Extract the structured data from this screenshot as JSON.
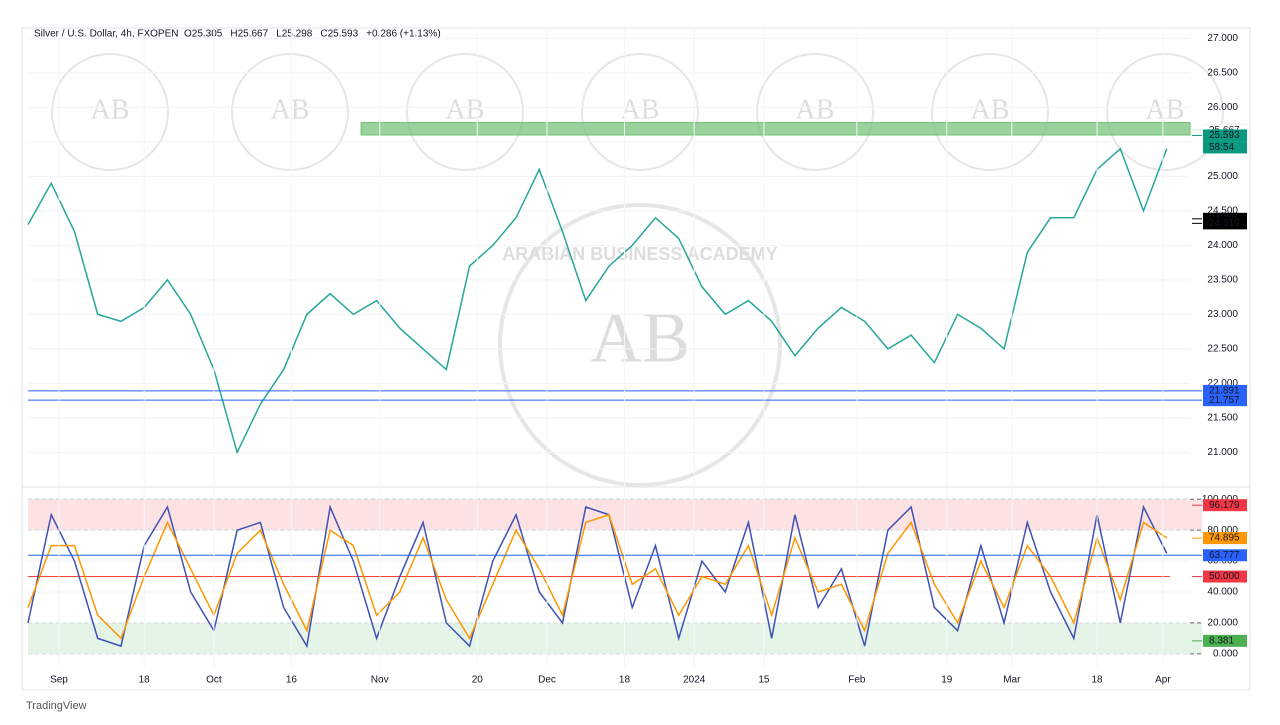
{
  "chart_data": [
    {
      "type": "line",
      "title": "Silver / U.S. Dollar, 4h, FXOPEN",
      "ohlc": [
        "O25.305",
        "H25.667",
        "L25.298",
        "C25.593",
        "+0.286 (+1.13%)"
      ],
      "x": [
        0,
        3,
        6,
        9,
        12,
        15,
        18,
        21,
        24,
        27,
        30,
        33,
        36,
        39,
        42,
        45,
        48,
        51,
        54,
        57,
        60,
        63,
        66,
        69,
        72,
        75,
        78,
        81,
        84,
        87,
        90,
        93,
        96,
        99,
        102,
        105,
        108,
        111,
        114,
        117,
        120,
        123,
        126,
        129,
        132,
        135,
        138,
        141,
        144,
        147
      ],
      "series": [
        {
          "name": "Close",
          "color": "#26a69a",
          "values": [
            24.3,
            24.9,
            24.2,
            23.0,
            22.9,
            23.1,
            23.5,
            23.0,
            22.2,
            21.0,
            21.7,
            22.2,
            23.0,
            23.3,
            23.0,
            23.2,
            22.8,
            22.5,
            22.2,
            23.7,
            24.0,
            24.4,
            25.1,
            24.2,
            23.2,
            23.7,
            24.0,
            24.4,
            24.1,
            23.4,
            23.0,
            23.2,
            22.9,
            22.4,
            22.8,
            23.1,
            22.9,
            22.5,
            22.7,
            22.3,
            23.0,
            22.8,
            22.5,
            23.9,
            24.4,
            24.4,
            25.1,
            25.4,
            24.5,
            25.4
          ]
        }
      ],
      "xlim": [
        0,
        150
      ],
      "xticks": [
        {
          "value": 4,
          "label": "Sep"
        },
        {
          "value": 15,
          "label": "18"
        },
        {
          "value": 24,
          "label": "Oct"
        },
        {
          "value": 34,
          "label": "16"
        },
        {
          "value": 45.4,
          "label": "Nov"
        },
        {
          "value": 58,
          "label": "20"
        },
        {
          "value": 67,
          "label": "Dec"
        },
        {
          "value": 77,
          "label": "18"
        },
        {
          "value": 86,
          "label": "2024"
        },
        {
          "value": 95,
          "label": "15"
        },
        {
          "value": 107,
          "label": "Feb"
        },
        {
          "value": 118.6,
          "label": "19"
        },
        {
          "value": 127,
          "label": "Mar"
        },
        {
          "value": 138,
          "label": "18"
        },
        {
          "value": 146.5,
          "label": "Apr"
        }
      ],
      "ylim": [
        20.6,
        27.15
      ],
      "yticks": [
        {
          "value": 21,
          "label": "21.000"
        },
        {
          "value": 21.5,
          "label": "21.500"
        },
        {
          "value": 22,
          "label": "22.000"
        },
        {
          "value": 22.5,
          "label": "22.500"
        },
        {
          "value": 23,
          "label": "23.000"
        },
        {
          "value": 23.5,
          "label": "23.500"
        },
        {
          "value": 24,
          "label": "24.000"
        },
        {
          "value": 24.5,
          "label": "24.500"
        },
        {
          "value": 25,
          "label": "25.000"
        },
        {
          "value": 25.5,
          "label": "25.500"
        },
        {
          "value": 26,
          "label": "26.000"
        },
        {
          "value": 26.5,
          "label": "26.500"
        },
        {
          "value": 27,
          "label": "27.000"
        }
      ],
      "zone": {
        "ylim": [
          25.6,
          25.78
        ],
        "xlim": [
          43,
          150
        ],
        "color": "#81c784"
      },
      "price_labels": [
        {
          "value": 25.667,
          "label": "25.667",
          "color": "#4caf50"
        },
        {
          "value": 25.667,
          "label": "25.667",
          "color": "#ffffff"
        },
        {
          "value": 25.593,
          "label": "25.593",
          "color": "#089981"
        },
        {
          "value": 24.385,
          "label": "24.385",
          "color": "#000000"
        },
        {
          "value": 24.319,
          "label": "24.319",
          "color": "#000000"
        },
        {
          "value": 21.891,
          "label": "21.891",
          "color": "#2962ff"
        },
        {
          "value": 21.757,
          "label": "21.757",
          "color": "#2962ff"
        }
      ],
      "countdown": "58:54",
      "watermark": {
        "text": "ARABIAN BUSINESS ACADEMY",
        "logo": "AB"
      }
    },
    {
      "type": "line",
      "x": [
        0,
        3,
        6,
        9,
        12,
        15,
        18,
        21,
        24,
        27,
        30,
        33,
        36,
        39,
        42,
        45,
        48,
        51,
        54,
        57,
        60,
        63,
        66,
        69,
        72,
        75,
        78,
        81,
        84,
        87,
        90,
        93,
        96,
        99,
        102,
        105,
        108,
        111,
        114,
        117,
        120,
        123,
        126,
        129,
        132,
        135,
        138,
        141,
        144,
        147
      ],
      "series": [
        {
          "name": "%K",
          "color": "#3f51b5",
          "values": [
            20,
            90,
            60,
            10,
            5,
            70,
            95,
            40,
            15,
            80,
            85,
            30,
            5,
            95,
            60,
            10,
            50,
            85,
            20,
            5,
            60,
            90,
            40,
            20,
            95,
            90,
            30,
            70,
            10,
            60,
            40,
            85,
            10,
            90,
            30,
            55,
            5,
            80,
            95,
            30,
            15,
            70,
            20,
            85,
            40,
            10,
            90,
            20,
            95,
            65
          ]
        },
        {
          "name": "%D",
          "color": "#ff9800",
          "values": [
            30,
            70,
            70,
            25,
            10,
            50,
            85,
            55,
            25,
            65,
            80,
            45,
            15,
            80,
            70,
            25,
            40,
            75,
            35,
            10,
            45,
            80,
            55,
            25,
            85,
            90,
            45,
            55,
            25,
            50,
            45,
            70,
            25,
            75,
            40,
            45,
            15,
            65,
            85,
            45,
            20,
            60,
            30,
            70,
            50,
            20,
            75,
            35,
            85,
            75
          ]
        }
      ],
      "ylim": [
        -4,
        106
      ],
      "yticks": [
        {
          "value": 0,
          "label": "0.000"
        },
        {
          "value": 20,
          "label": "20.000"
        },
        {
          "value": 40,
          "label": "40.000"
        },
        {
          "value": 60,
          "label": "60.000"
        },
        {
          "value": 80,
          "label": "80.000"
        },
        {
          "value": 100,
          "label": "100.000"
        }
      ],
      "bands": [
        {
          "range": [
            80,
            100
          ],
          "color": "#fbd5d5"
        },
        {
          "range": [
            0,
            20
          ],
          "color": "#d8f0dc"
        }
      ],
      "midline": {
        "value": 50,
        "color": "#f44336"
      },
      "price_labels": [
        {
          "value": 96.179,
          "label": "96.179",
          "color": "#f23645"
        },
        {
          "value": 74.895,
          "label": "74.895",
          "color": "#ff9800"
        },
        {
          "value": 63.777,
          "label": "63.777",
          "color": "#2962ff"
        },
        {
          "value": 50,
          "label": "50.000",
          "color": "#f23645"
        },
        {
          "value": 8.381,
          "label": "8.381",
          "color": "#4caf50"
        }
      ]
    }
  ],
  "footer": "TradingView"
}
